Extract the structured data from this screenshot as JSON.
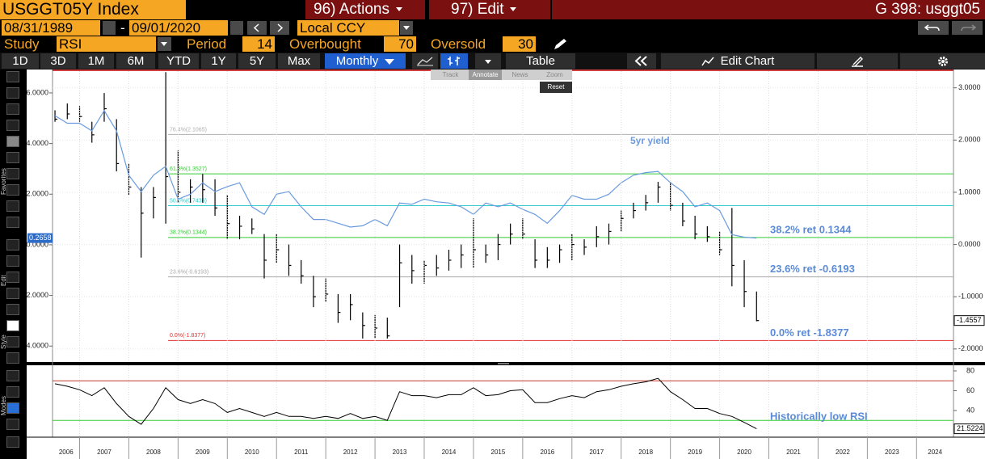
{
  "header": {
    "ticker": "USGGT05Y Index",
    "actions": "96) Actions",
    "edit": "97) Edit",
    "page": "G 398: usggt05"
  },
  "controls": {
    "start_date": "08/31/1989",
    "separator": "-",
    "end_date": "09/01/2020",
    "currency": "Local CCY",
    "study_label": "Study",
    "study": "RSI",
    "period_label": "Period",
    "period": 14,
    "overbought_label": "Overbought",
    "overbought": 70,
    "oversold_label": "Oversold",
    "oversold": 30
  },
  "toolbar": {
    "ranges": [
      "1D",
      "3D",
      "1M",
      "6M",
      "YTD",
      "1Y",
      "5Y",
      "Max"
    ],
    "frequency": "Monthly",
    "table": "Table",
    "edit_chart": "Edit Chart"
  },
  "chart_tools": {
    "items": [
      "Track",
      "Annotate",
      "News",
      "Zoom"
    ],
    "reset": "Reset"
  },
  "sidebar": [
    "Favorites",
    "Edit",
    "Style",
    "Modes"
  ],
  "chart_data": [
    {
      "type": "ohlc",
      "x": [
        2006.5,
        2006.75,
        2007,
        2007.25,
        2007.5,
        2007.75,
        2008,
        2008.25,
        2008.5,
        2008.75,
        2009,
        2009.25,
        2009.5,
        2009.75,
        2010,
        2010.25,
        2010.5,
        2010.75,
        2011,
        2011.25,
        2011.5,
        2011.75,
        2012,
        2012.25,
        2012.5,
        2012.75,
        2013,
        2013.25,
        2013.5,
        2013.75,
        2014,
        2014.25,
        2014.5,
        2014.75,
        2015,
        2015.25,
        2015.5,
        2015.75,
        2016,
        2016.25,
        2016.5,
        2016.75,
        2017,
        2017.25,
        2017.5,
        2017.75,
        2018,
        2018.25,
        2018.5,
        2018.75,
        2019,
        2019.25,
        2019.5,
        2019.75,
        2020,
        2020.25,
        2020.5,
        2020.75
      ],
      "xlim": [
        2006.45,
        2024.75
      ],
      "series": [
        {
          "type": "ohlc",
          "axis": "y2",
          "color": "#000000",
          "high": [
            2.57,
            2.7,
            2.65,
            2.35,
            2.9,
            2.4,
            1.55,
            1.1,
            1.1,
            3.3,
            1.8,
            1.25,
            1.35,
            1.25,
            0.95,
            0.55,
            0.5,
            0.2,
            0.2,
            0.0,
            -0.3,
            -0.6,
            -0.65,
            -0.95,
            -0.95,
            -1.3,
            -1.35,
            -1.4,
            0.0,
            -0.2,
            -0.3,
            -0.2,
            -0.1,
            0.0,
            0.5,
            0.0,
            0.2,
            0.4,
            0.5,
            0.1,
            -0.05,
            0.0,
            0.2,
            0.1,
            0.35,
            0.4,
            0.65,
            0.8,
            0.95,
            1.2,
            1.2,
            0.8,
            0.55,
            0.35,
            0.25,
            0.7,
            -0.3,
            -0.9
          ],
          "low": [
            2.35,
            2.4,
            2.35,
            1.95,
            2.35,
            1.4,
            0.95,
            -0.25,
            0.5,
            0.4,
            0.8,
            0.8,
            0.8,
            0.55,
            0.1,
            0.1,
            0.2,
            -0.65,
            -0.35,
            -0.6,
            -0.75,
            -1.2,
            -1.1,
            -1.5,
            -1.45,
            -1.8,
            -1.8,
            -1.8,
            -1.2,
            -0.75,
            -0.75,
            -0.6,
            -0.5,
            -0.45,
            -0.45,
            -0.35,
            -0.3,
            0.0,
            0.1,
            -0.45,
            -0.45,
            -0.35,
            -0.3,
            -0.2,
            -0.05,
            0.0,
            0.25,
            0.5,
            0.65,
            0.8,
            0.65,
            0.35,
            0.1,
            0.05,
            -0.2,
            -0.8,
            -1.2,
            -1.47
          ],
          "close": [
            2.4,
            2.5,
            2.45,
            2.1,
            2.6,
            1.55,
            1.1,
            0.6,
            0.9,
            1.3,
            1.0,
            1.1,
            1.05,
            0.7,
            0.4,
            0.35,
            0.3,
            -0.3,
            -0.1,
            -0.4,
            -0.6,
            -1.0,
            -0.95,
            -1.3,
            -1.15,
            -1.55,
            -1.6,
            -1.75,
            -0.35,
            -0.5,
            -0.4,
            -0.45,
            -0.3,
            -0.2,
            -0.1,
            -0.2,
            0.0,
            0.2,
            0.2,
            -0.3,
            -0.3,
            -0.1,
            0.0,
            -0.05,
            0.15,
            0.25,
            0.5,
            0.65,
            0.8,
            1.1,
            0.75,
            0.45,
            0.2,
            0.15,
            -0.1,
            -0.4,
            -0.9,
            -1.4557
          ]
        },
        {
          "type": "line",
          "axis": "y",
          "name": "5yr yield",
          "color": "#6a9be0",
          "values": [
            5.1,
            4.8,
            4.8,
            4.5,
            5.3,
            4.5,
            2.75,
            2.1,
            2.75,
            3.1,
            1.8,
            2.0,
            2.45,
            2.1,
            2.3,
            2.45,
            1.5,
            1.2,
            2.0,
            2.1,
            1.5,
            1.0,
            1.0,
            0.85,
            0.7,
            0.75,
            1.0,
            0.75,
            1.65,
            1.6,
            1.8,
            1.7,
            1.65,
            1.5,
            1.2,
            1.65,
            1.5,
            1.65,
            1.4,
            1.2,
            0.85,
            1.35,
            1.95,
            1.8,
            1.8,
            2.0,
            2.45,
            2.75,
            2.85,
            2.9,
            2.45,
            2.1,
            1.5,
            1.65,
            1.35,
            0.4,
            0.3,
            0.2658
          ]
        }
      ],
      "ylim": [
        -4.63,
        6.86
      ],
      "yticks": [
        {
          "value": 6,
          "label": "6.0000"
        },
        {
          "value": 4,
          "label": "4.0000"
        },
        {
          "value": 2,
          "label": "2.0000"
        },
        {
          "value": 0,
          "label": "0.0000"
        },
        {
          "value": -2,
          "label": "-2.0000"
        },
        {
          "value": -4,
          "label": "-4.0000"
        }
      ],
      "y2lim": [
        -2.25,
        3.32
      ],
      "y2ticks": [
        {
          "value": 3,
          "label": "3.0000"
        },
        {
          "value": 2,
          "label": "2.0000"
        },
        {
          "value": 1,
          "label": "1.0000"
        },
        {
          "value": 0,
          "label": "0.0000"
        },
        {
          "value": -1,
          "label": "-1.0000"
        },
        {
          "value": -2,
          "label": "-2.0000"
        }
      ],
      "grid": true,
      "levels": [
        {
          "value": 2.1065,
          "label": "76.4%(2.1065)",
          "color": "#b0b0b0"
        },
        {
          "value": 1.3527,
          "label": "61.8%(1.3527)",
          "color": "#33cc33"
        },
        {
          "value": 0.7436,
          "label": "50.0%(0.7436)",
          "color": "#33cccc"
        },
        {
          "value": 0.1344,
          "label": "38.2%(0.1344)",
          "color": "#33cc33"
        },
        {
          "value": -0.6193,
          "label": "23.6%(-0.6193)",
          "color": "#a8a8a8"
        },
        {
          "value": -1.8377,
          "label": "0.0%(-1.8377)",
          "color": "#e03030"
        }
      ],
      "annotations": [
        {
          "label": "38.2% ret 0.1344",
          "value": 0.1344
        },
        {
          "label": "23.6% ret -0.6193",
          "value": -0.6193
        },
        {
          "label": "0.0% ret -1.8377",
          "value": -1.8377
        }
      ],
      "annotation_color": "#5b8bd8"
    },
    {
      "type": "line",
      "x": [
        2006.5,
        2006.75,
        2007,
        2007.25,
        2007.5,
        2007.75,
        2008,
        2008.25,
        2008.5,
        2008.75,
        2009,
        2009.25,
        2009.5,
        2009.75,
        2010,
        2010.25,
        2010.5,
        2010.75,
        2011,
        2011.25,
        2011.5,
        2011.75,
        2012,
        2012.25,
        2012.5,
        2012.75,
        2013,
        2013.25,
        2013.5,
        2013.75,
        2014,
        2014.25,
        2014.5,
        2014.75,
        2015,
        2015.25,
        2015.5,
        2015.75,
        2016,
        2016.25,
        2016.5,
        2016.75,
        2017,
        2017.25,
        2017.5,
        2017.75,
        2018,
        2018.25,
        2018.5,
        2018.75,
        2019,
        2019.25,
        2019.5,
        2019.75,
        2020,
        2020.25,
        2020.5,
        2020.75
      ],
      "values": [
        67,
        64.5,
        61,
        55,
        63,
        47,
        34,
        26,
        42,
        63,
        51,
        47,
        51,
        47,
        38,
        42,
        38,
        34,
        38,
        34,
        34,
        32,
        34,
        32,
        37,
        32,
        34,
        30,
        59,
        55,
        55,
        53,
        56,
        56,
        63,
        55,
        56,
        60,
        61,
        48,
        48,
        52,
        55,
        53,
        59,
        61,
        64.5,
        67,
        69,
        72.5,
        59,
        51,
        42,
        42,
        37,
        34,
        28,
        21.5224
      ],
      "color": "#000000",
      "xlim": [
        2006.45,
        2024.75
      ],
      "xticks": [
        2006,
        2007,
        2008,
        2009,
        2010,
        2011,
        2012,
        2013,
        2014,
        2015,
        2016,
        2017,
        2018,
        2019,
        2020,
        2021,
        2022,
        2023,
        2024
      ],
      "ylim": [
        13.06,
        85.7
      ],
      "yticks": [
        80,
        60,
        40,
        20
      ],
      "overbought_color": "#c0392b",
      "oversold_color": "#33cc33",
      "annotation": "Historically low RSI",
      "annotation_color": "#5b8bd8"
    }
  ]
}
